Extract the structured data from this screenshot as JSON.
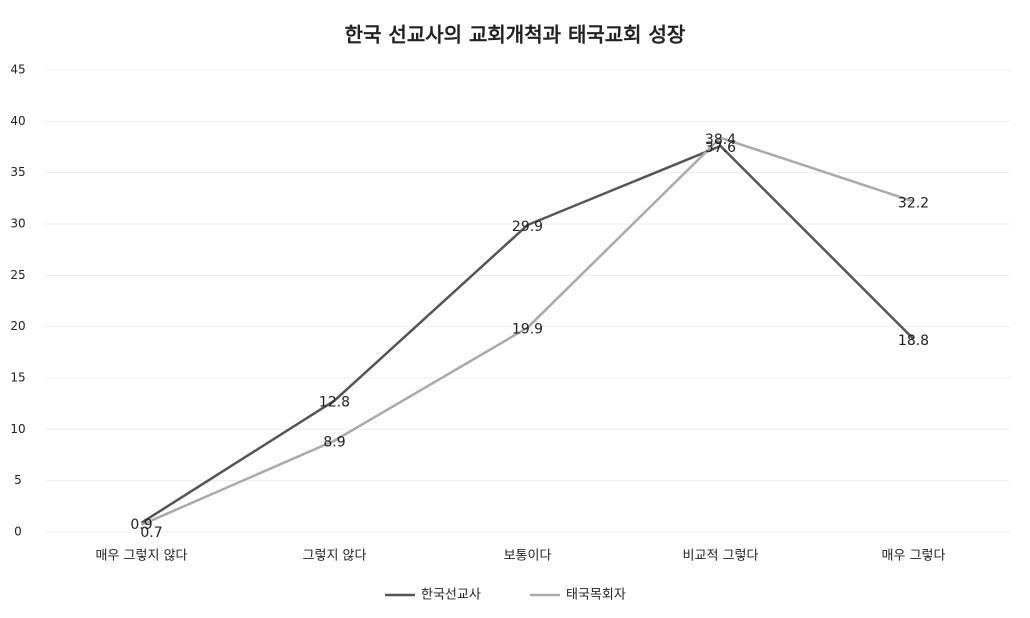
{
  "chart_data": {
    "type": "line",
    "title": "한국 선교사의 교회개척과 태국교회 성장",
    "categories": [
      "매우 그렇지 않다",
      "그렇지 않다",
      "보통이다",
      "비교적 그렇다",
      "매우 그렇다"
    ],
    "series": [
      {
        "name": "한국선교사",
        "color": "#555555",
        "values": [
          0.9,
          12.8,
          29.9,
          37.6,
          18.8
        ]
      },
      {
        "name": "태국목회자",
        "color": "#aaaaaa",
        "values": [
          0.7,
          8.9,
          19.9,
          38.4,
          32.2
        ]
      }
    ],
    "ylim": [
      0,
      45
    ],
    "yticks": [
      0,
      5,
      10,
      15,
      20,
      25,
      30,
      35,
      40,
      45
    ],
    "grid": true,
    "legend": "bottom"
  }
}
